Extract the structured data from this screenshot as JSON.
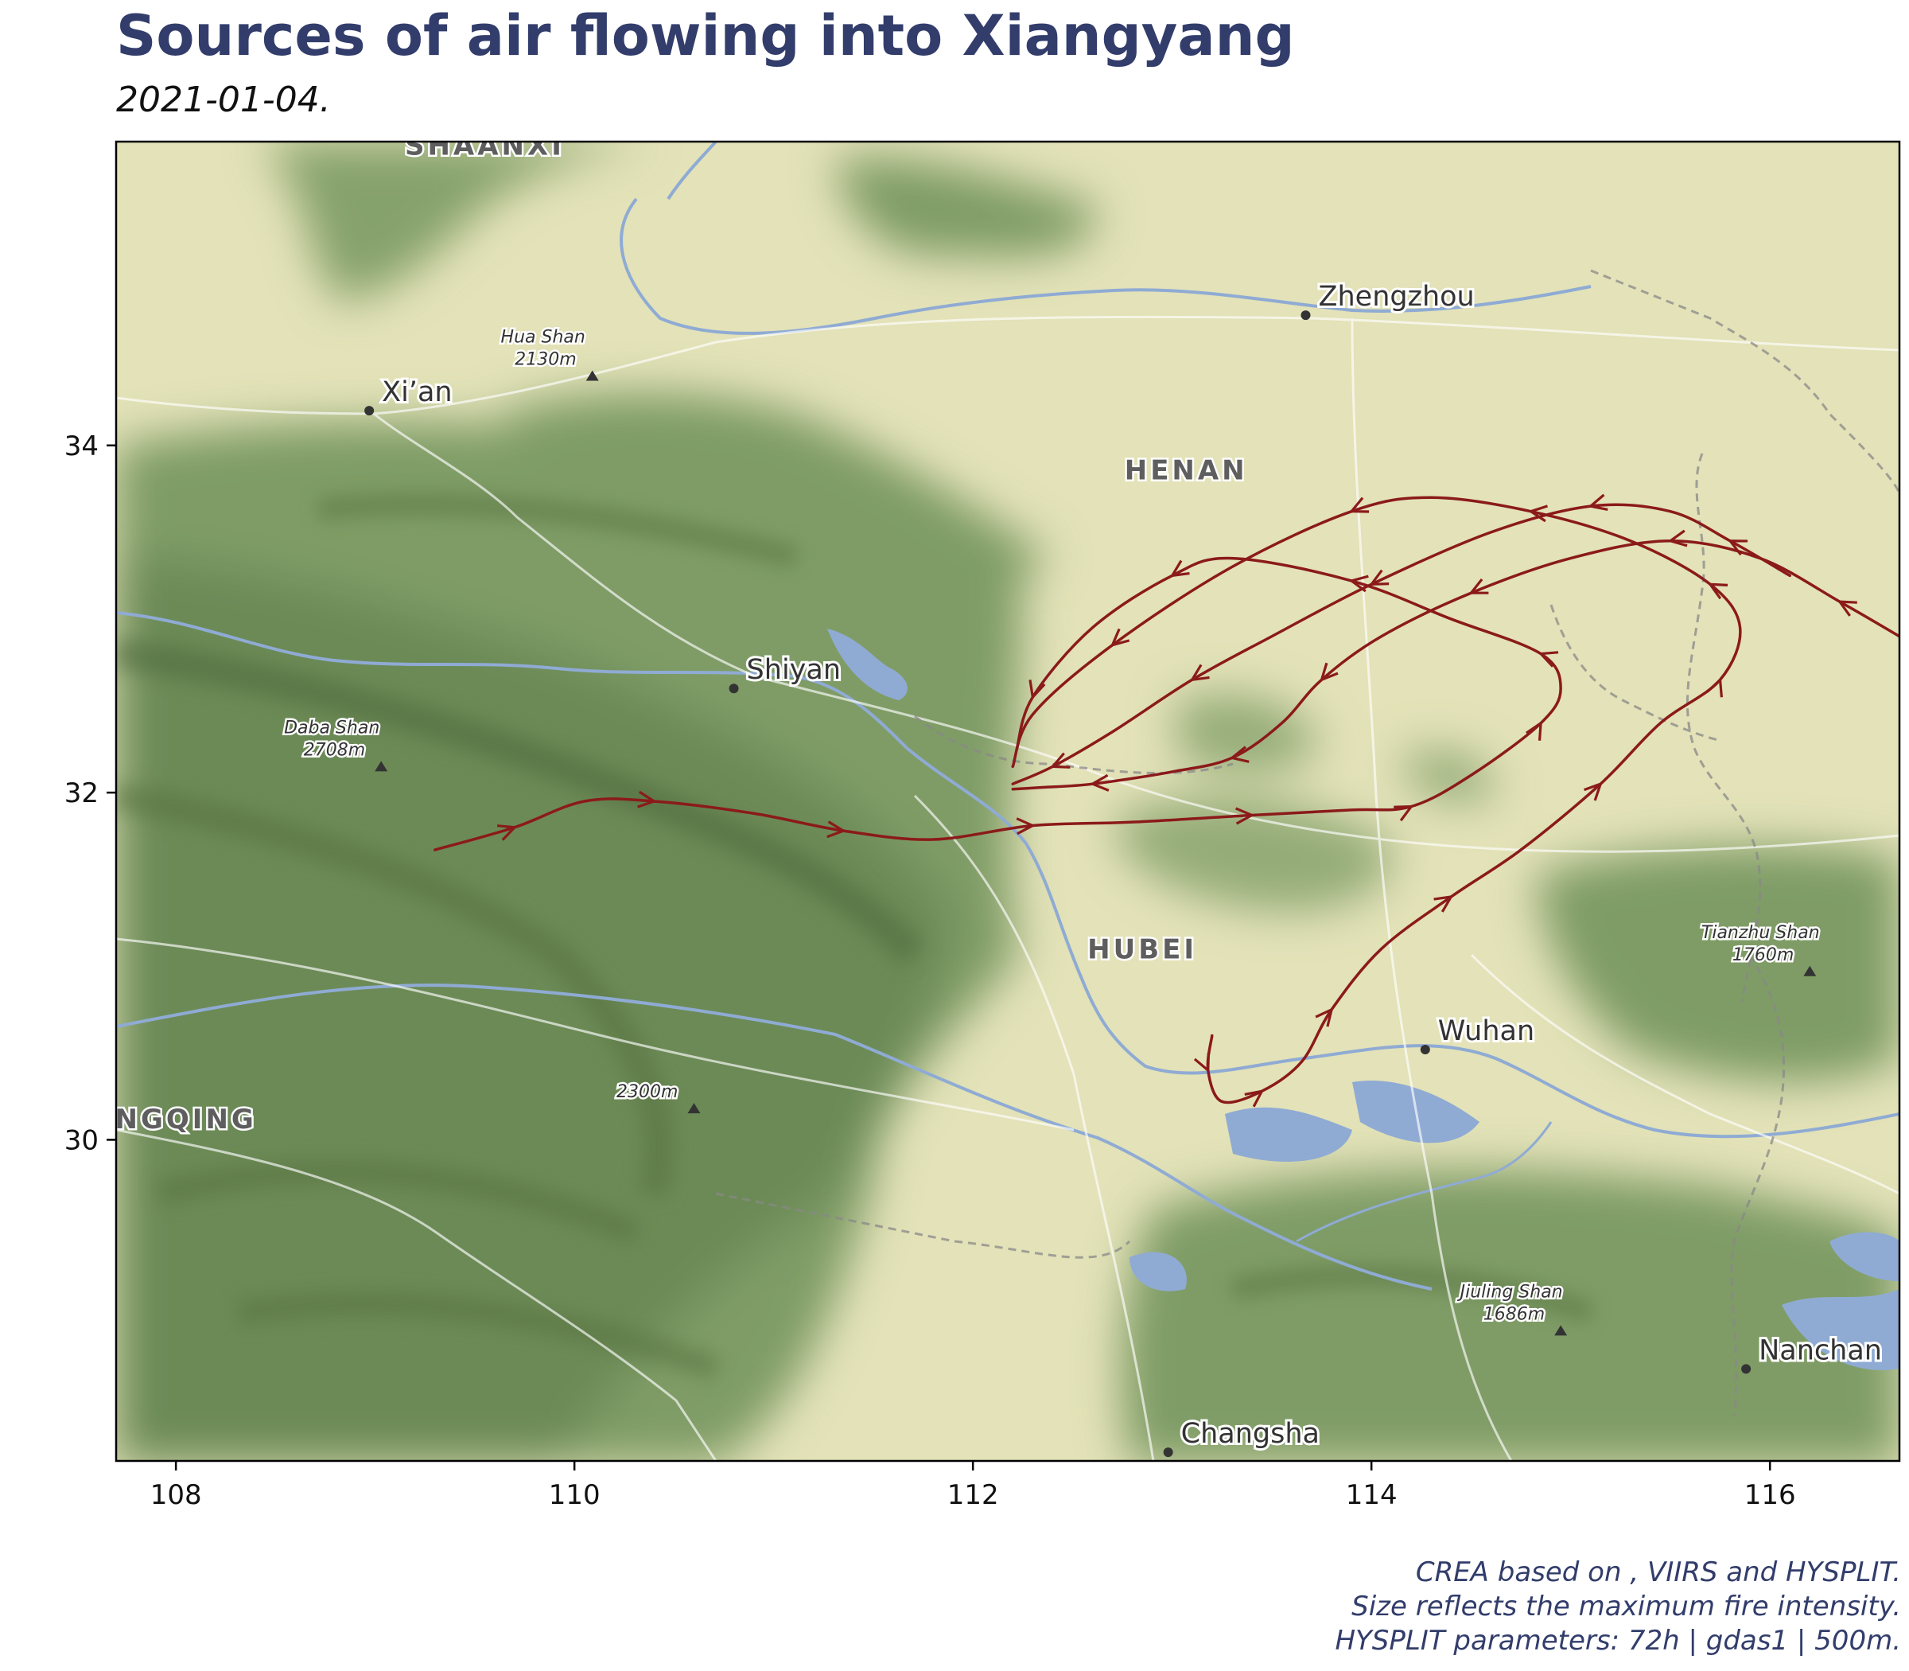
{
  "title": "Sources of air flowing into Xiangyang",
  "subtitle": "2021-01-04.",
  "caption": [
    "CREA based on , VIIRS and HYSPLIT.",
    "Size reflects the maximum fire intensity.",
    "HYSPLIT parameters: 72h | gdas1 | 500m."
  ],
  "colors": {
    "title": "#323d6b",
    "trajectory": "#8b1a1a",
    "lowland": "#e3e2b8",
    "forest": "#7d9a64",
    "water": "#8fabd4",
    "border": "#888888"
  },
  "map": {
    "xlim": [
      107.7,
      116.65
    ],
    "ylim": [
      28.15,
      35.75
    ],
    "x_ticks": [
      108,
      110,
      112,
      114,
      116
    ],
    "y_ticks": [
      30,
      32,
      34
    ],
    "x_tick_labels": [
      "108",
      "110",
      "112",
      "114",
      "116"
    ],
    "y_tick_labels": [
      "30",
      "32",
      "34"
    ],
    "cities": [
      {
        "name": "Zhengzhou",
        "lon": 113.67,
        "lat": 34.75
      },
      {
        "name": "Xi’an",
        "lon": 108.97,
        "lat": 34.2
      },
      {
        "name": "Shiyan",
        "lon": 110.8,
        "lat": 32.6
      },
      {
        "name": "Wuhan",
        "lon": 114.27,
        "lat": 30.52
      },
      {
        "name": "Changsha",
        "lon": 112.98,
        "lat": 28.2
      },
      {
        "name": "Nanchan",
        "lon": 115.88,
        "lat": 28.68
      }
    ],
    "provinces": [
      {
        "name": "SHAANXI",
        "lon": 109.55,
        "lat": 35.73
      },
      {
        "name": "HENAN",
        "lon": 113.07,
        "lat": 33.86
      },
      {
        "name": "HUBEI",
        "lon": 112.85,
        "lat": 31.1
      },
      {
        "name": "NGQING",
        "lon": 108.05,
        "lat": 30.12
      }
    ],
    "peaks": [
      {
        "name": "Hua Shan",
        "elev": "2130m",
        "lon": 110.09,
        "lat": 34.4
      },
      {
        "name": "Daba Shan",
        "elev": "2708m",
        "lon": 109.03,
        "lat": 32.15
      },
      {
        "name": "",
        "elev": "2300m",
        "lon": 110.6,
        "lat": 30.18
      },
      {
        "name": "Tianzhu Shan",
        "elev": "1760m",
        "lon": 116.2,
        "lat": 30.97
      },
      {
        "name": "Jiuling Shan",
        "elev": "1686m",
        "lon": 114.95,
        "lat": 28.9
      }
    ],
    "trajectories": [
      {
        "points": [
          [
            109.3,
            31.67
          ],
          [
            109.7,
            31.8
          ],
          [
            110.05,
            31.95
          ],
          [
            110.4,
            31.95
          ],
          [
            110.9,
            31.88
          ],
          [
            111.35,
            31.78
          ],
          [
            111.8,
            31.73
          ],
          [
            112.3,
            31.81
          ],
          [
            112.8,
            31.83
          ],
          [
            113.4,
            31.87
          ],
          [
            113.9,
            31.9
          ],
          [
            114.2,
            31.92
          ],
          [
            114.5,
            32.1
          ],
          [
            114.85,
            32.4
          ],
          [
            114.95,
            32.6
          ],
          [
            114.85,
            32.8
          ],
          [
            114.4,
            33.0
          ],
          [
            113.9,
            33.22
          ],
          [
            113.3,
            33.35
          ],
          [
            113.0,
            33.25
          ],
          [
            112.6,
            32.95
          ],
          [
            112.3,
            32.55
          ],
          [
            112.22,
            32.25
          ]
        ]
      },
      {
        "points": [
          [
            113.2,
            30.6
          ],
          [
            113.18,
            30.4
          ],
          [
            113.25,
            30.22
          ],
          [
            113.45,
            30.28
          ],
          [
            113.65,
            30.45
          ],
          [
            113.8,
            30.75
          ],
          [
            114.05,
            31.1
          ],
          [
            114.4,
            31.4
          ],
          [
            114.75,
            31.67
          ],
          [
            115.15,
            32.05
          ],
          [
            115.45,
            32.4
          ],
          [
            115.75,
            32.65
          ],
          [
            115.85,
            32.95
          ],
          [
            115.7,
            33.2
          ],
          [
            115.3,
            33.45
          ],
          [
            114.8,
            33.62
          ],
          [
            114.3,
            33.7
          ],
          [
            113.9,
            33.62
          ],
          [
            113.3,
            33.3
          ],
          [
            112.7,
            32.85
          ],
          [
            112.3,
            32.45
          ],
          [
            112.2,
            32.15
          ]
        ]
      },
      {
        "points": [
          [
            116.65,
            32.9
          ],
          [
            116.35,
            33.1
          ],
          [
            115.95,
            33.35
          ],
          [
            115.5,
            33.45
          ],
          [
            115.0,
            33.35
          ],
          [
            114.5,
            33.15
          ],
          [
            114.05,
            32.9
          ],
          [
            113.75,
            32.65
          ],
          [
            113.55,
            32.4
          ],
          [
            113.3,
            32.2
          ],
          [
            113.0,
            32.12
          ],
          [
            112.6,
            32.05
          ],
          [
            112.35,
            32.03
          ],
          [
            112.2,
            32.02
          ]
        ]
      },
      {
        "points": [
          [
            116.1,
            33.25
          ],
          [
            115.8,
            33.45
          ],
          [
            115.5,
            33.62
          ],
          [
            115.1,
            33.65
          ],
          [
            114.6,
            33.5
          ],
          [
            114.0,
            33.2
          ],
          [
            113.5,
            32.9
          ],
          [
            113.1,
            32.65
          ],
          [
            112.7,
            32.35
          ],
          [
            112.4,
            32.15
          ],
          [
            112.2,
            32.05
          ]
        ]
      }
    ]
  }
}
